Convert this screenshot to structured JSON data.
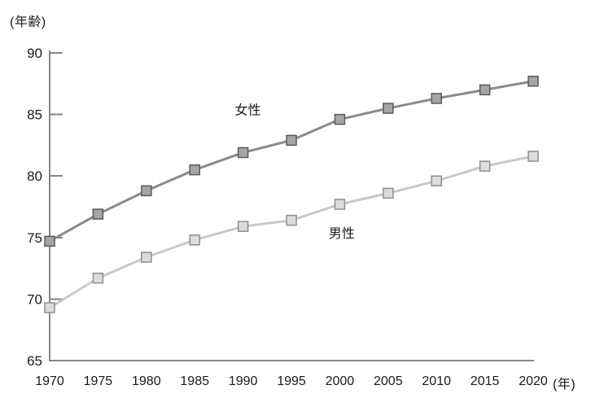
{
  "chart_data": {
    "type": "line",
    "title": "",
    "y_axis_unit_label": "(年齢)",
    "x_axis_unit_label": "(年)",
    "xlim": [
      1970,
      2020
    ],
    "ylim": [
      65,
      90
    ],
    "y_ticks": [
      65,
      70,
      75,
      80,
      85,
      90
    ],
    "x_ticks": [
      1970,
      1975,
      1980,
      1985,
      1990,
      1995,
      2000,
      2005,
      2010,
      2015,
      2020
    ],
    "grid": false,
    "legend_position": "inline-annotations",
    "years": [
      1970,
      1975,
      1980,
      1985,
      1990,
      1995,
      2000,
      2005,
      2010,
      2015,
      2020
    ],
    "series": [
      {
        "name": "女性",
        "values": [
          74.7,
          76.9,
          78.8,
          80.5,
          81.9,
          82.9,
          84.6,
          85.5,
          86.3,
          87.0,
          87.7
        ],
        "line_color": "#8a8a8a",
        "marker": "square",
        "marker_fill": "#a5a5a5",
        "marker_stroke": "#5a5a5a"
      },
      {
        "name": "男性",
        "values": [
          69.3,
          71.7,
          73.4,
          74.8,
          75.9,
          76.4,
          77.7,
          78.6,
          79.6,
          80.8,
          81.6
        ],
        "line_color": "#c9c9c9",
        "marker": "square",
        "marker_fill": "#dcdcdc",
        "marker_stroke": "#8e8e8e"
      }
    ],
    "annotations": [
      {
        "text": "女性",
        "x_year": 1990.5,
        "y_value": 85.4
      },
      {
        "text": "男性",
        "x_year": 2000.2,
        "y_value": 75.4
      }
    ],
    "axis_color": "#858585",
    "text_color": "#1a1a1a"
  }
}
